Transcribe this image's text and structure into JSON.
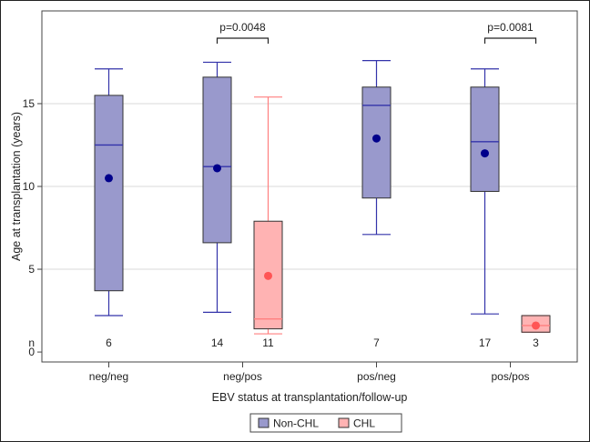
{
  "chart_data": {
    "type": "box",
    "xlabel": "EBV status at transplantation/follow-up",
    "ylabel": "Age at transplantation (years)",
    "ylim": [
      -0.6,
      20.6
    ],
    "yticks": [
      0,
      5,
      10,
      15
    ],
    "grid": "horizontal",
    "legend_position": "bottom-center",
    "categories": [
      "neg/neg",
      "neg/pos",
      "pos/neg",
      "pos/pos"
    ],
    "n_row_label": "n",
    "series": [
      {
        "name": "Non-CHL",
        "fill": "#9999cc",
        "stroke": "#3333aa",
        "mean_color": "#00008b"
      },
      {
        "name": "CHL",
        "fill": "#ffb3b3",
        "stroke": "#ff7f7f",
        "mean_color": "#ff5555"
      }
    ],
    "boxes": [
      {
        "category": "neg/neg",
        "series": "Non-CHL",
        "min": 2.2,
        "q1": 3.7,
        "median": 12.5,
        "q3": 15.5,
        "max": 17.1,
        "mean": 10.5,
        "n": "6"
      },
      {
        "category": "neg/pos",
        "series": "Non-CHL",
        "min": 2.4,
        "q1": 6.6,
        "median": 11.2,
        "q3": 16.6,
        "max": 17.5,
        "mean": 11.1,
        "n": "14"
      },
      {
        "category": "neg/pos",
        "series": "CHL",
        "min": 1.1,
        "q1": 1.4,
        "median": 2.0,
        "q3": 7.9,
        "max": 15.4,
        "mean": 4.6,
        "n": "11"
      },
      {
        "category": "pos/neg",
        "series": "Non-CHL",
        "min": 7.1,
        "q1": 9.3,
        "median": 14.9,
        "q3": 16.0,
        "max": 17.6,
        "mean": 12.9,
        "n": "7"
      },
      {
        "category": "pos/pos",
        "series": "Non-CHL",
        "min": 2.3,
        "q1": 9.7,
        "median": 12.7,
        "q3": 16.0,
        "max": 17.1,
        "mean": 12.0,
        "n": "17"
      },
      {
        "category": "pos/pos",
        "series": "CHL",
        "min": 1.2,
        "q1": 1.2,
        "median": 1.6,
        "q3": 2.2,
        "max": 2.2,
        "mean": 1.6,
        "n": "3"
      }
    ],
    "annotations": [
      {
        "category": "neg/pos",
        "text": "p=0.0048"
      },
      {
        "category": "pos/pos",
        "text": "p=0.0081"
      }
    ]
  }
}
